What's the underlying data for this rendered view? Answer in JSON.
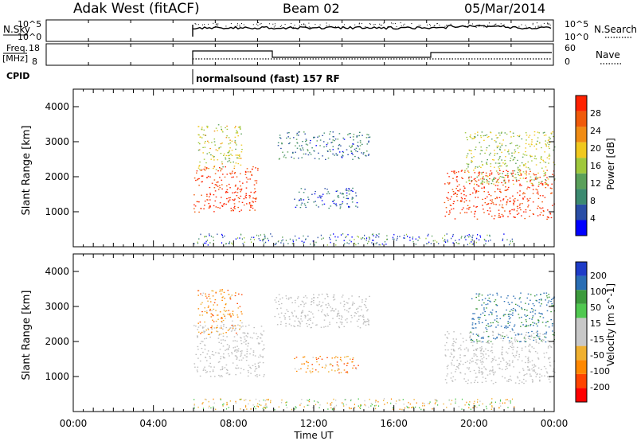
{
  "header": {
    "station": "Adak West (fitACF)",
    "beam": "Beam 02",
    "date": "05/Mar/2014"
  },
  "labels": {
    "nsky": "N.Sky",
    "nsearch": "N.Search",
    "freq_line1": "Freq.",
    "freq_line2": "[MHz]",
    "nave": "Nave",
    "cpid": "CPID",
    "program": "normalsound (fast) 157 RF"
  },
  "noise_panel": {
    "left_ticks": [
      "10^5",
      "10^0"
    ],
    "right_ticks": [
      "10^5",
      "10^0"
    ]
  },
  "freq_panel": {
    "left_ticks": [
      "18",
      "8"
    ],
    "right_ticks": [
      "60",
      "0"
    ]
  },
  "colors": {
    "power_scale": [
      "#0000ff",
      "#2a4ea6",
      "#3c8a70",
      "#5aa05a",
      "#9fc83c",
      "#f0c81e",
      "#f08c14",
      "#f05a0a",
      "#ff2200"
    ],
    "velocity_scale": [
      "#ff0000",
      "#ff4400",
      "#ff8800",
      "#f0b030",
      "#c8c8c8",
      "#c8c8c8",
      "#50c850",
      "#3c9a3c",
      "#2a6eb4",
      "#1e3cc8"
    ],
    "ground_scatter": "#bebebe"
  },
  "chart_data": [
    {
      "type": "heatmap",
      "title": "Power",
      "xlabel": "Time UT",
      "ylabel": "Slant Range [km]",
      "x_ticks": [
        "00:00",
        "04:00",
        "08:00",
        "12:00",
        "16:00",
        "20:00",
        "00:00"
      ],
      "xlim_hours": [
        0,
        24
      ],
      "ylim_km": [
        0,
        4500
      ],
      "y_ticks": [
        1000,
        2000,
        3000,
        4000
      ],
      "colorbar": {
        "label": "Power [dB]",
        "ticks": [
          4,
          8,
          12,
          16,
          20,
          24,
          28
        ],
        "range": [
          0,
          32
        ]
      },
      "regions": [
        {
          "hours": [
            6.0,
            9.2
          ],
          "km": [
            1000,
            2300
          ],
          "value_db": 30
        },
        {
          "hours": [
            6.2,
            8.4
          ],
          "km": [
            2200,
            3500
          ],
          "value_db": 18
        },
        {
          "hours": [
            10.2,
            14.8
          ],
          "km": [
            2500,
            3300
          ],
          "value_db": 8
        },
        {
          "hours": [
            11.0,
            14.2
          ],
          "km": [
            1100,
            1700
          ],
          "value_db": 6
        },
        {
          "hours": [
            18.5,
            24.0
          ],
          "km": [
            800,
            2200
          ],
          "value_db": 30
        },
        {
          "hours": [
            19.5,
            24.0
          ],
          "km": [
            1800,
            3300
          ],
          "value_db": 16
        }
      ]
    },
    {
      "type": "heatmap",
      "title": "Velocity",
      "xlabel": "Time UT",
      "ylabel": "Slant Range [km]",
      "x_ticks": [
        "00:00",
        "04:00",
        "08:00",
        "12:00",
        "16:00",
        "20:00",
        "00:00"
      ],
      "xlim_hours": [
        0,
        24
      ],
      "ylim_km": [
        0,
        4500
      ],
      "y_ticks": [
        1000,
        2000,
        3000,
        4000
      ],
      "colorbar": {
        "label": "Velocity [m s^-1]",
        "ticks": [
          200,
          100,
          50,
          15,
          -15,
          -50,
          -100,
          -200
        ]
      },
      "regions": [
        {
          "hours": [
            6.0,
            9.5
          ],
          "km": [
            1000,
            2500
          ],
          "value_ms": 0,
          "ground_scatter": true
        },
        {
          "hours": [
            6.2,
            8.4
          ],
          "km": [
            2200,
            3500
          ],
          "value_ms": -60
        },
        {
          "hours": [
            10.0,
            14.8
          ],
          "km": [
            2400,
            3400
          ],
          "value_ms": 0,
          "ground_scatter": true
        },
        {
          "hours": [
            11.0,
            14.2
          ],
          "km": [
            1100,
            1600
          ],
          "value_ms": -60
        },
        {
          "hours": [
            18.5,
            24.0
          ],
          "km": [
            800,
            2300
          ],
          "value_ms": 0,
          "ground_scatter": true
        },
        {
          "hours": [
            19.8,
            24.0
          ],
          "km": [
            2000,
            3400
          ],
          "value_ms": 120
        }
      ]
    }
  ]
}
